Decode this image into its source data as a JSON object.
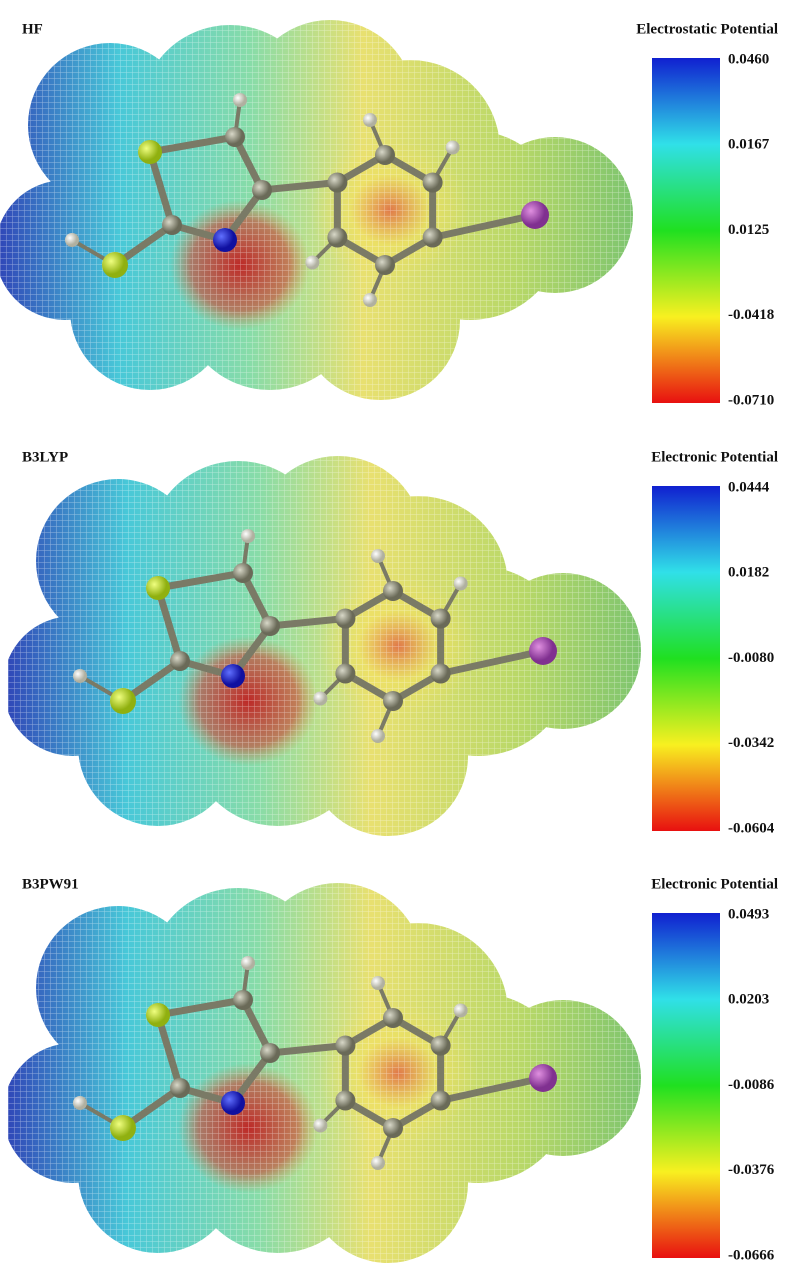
{
  "panels": [
    {
      "method": "HF",
      "scale_title": "Electrostatic Potential",
      "scale_labels": [
        "0.0460",
        "0.0167",
        "0.0125",
        "-0.0418",
        "-0.0710"
      ]
    },
    {
      "method": "B3LYP",
      "scale_title": "Electronic Potential",
      "scale_labels": [
        "0.0444",
        "0.0182",
        "-0.0080",
        "-0.0342",
        "-0.0604"
      ]
    },
    {
      "method": "B3PW91",
      "scale_title": "Electronic Potential",
      "scale_labels": [
        "0.0493",
        "0.0203",
        "-0.0086",
        "-0.0376",
        "-0.0666"
      ]
    }
  ]
}
